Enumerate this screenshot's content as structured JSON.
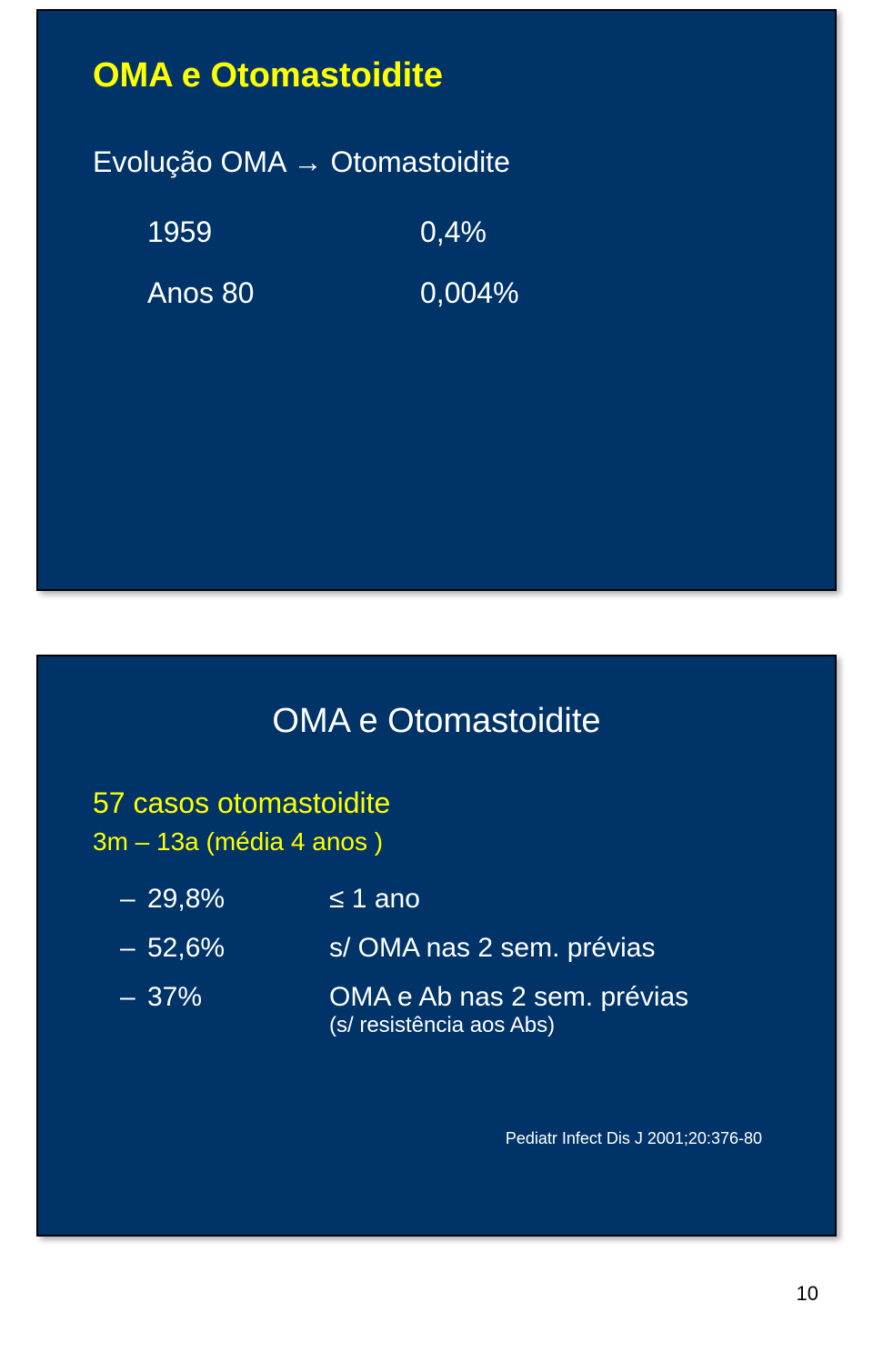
{
  "slide1": {
    "title": "OMA e Otomastoidite",
    "subtitle": "Evolução OMA → Otomastoidite",
    "rows": [
      {
        "label": "1959",
        "value": "0,4%"
      },
      {
        "label": "Anos 80",
        "value": "0,004%"
      }
    ],
    "title_color": "#ffff00",
    "text_color": "#ffffff",
    "bg_color": "#003468"
  },
  "slide2": {
    "title": "OMA e Otomastoidite",
    "cases_title": "57 casos otomastoidite",
    "cases_sub": "3m – 13a (média 4 anos )",
    "stats": [
      {
        "pct": "29,8%",
        "desc": "≤ 1 ano",
        "sub": ""
      },
      {
        "pct": "52,6%",
        "desc": "s/ OMA nas 2 sem. prévias",
        "sub": ""
      },
      {
        "pct": "37%",
        "desc": "OMA e Ab nas 2 sem. prévias",
        "sub": "(s/ resistência aos Abs)"
      }
    ],
    "citation": "Pediatr Infect Dis J 2001;20:376-80",
    "title_color": "#ffffff",
    "highlight_color": "#ffff00",
    "text_color": "#ffffff",
    "bg_color": "#003468"
  },
  "page_number": "10"
}
